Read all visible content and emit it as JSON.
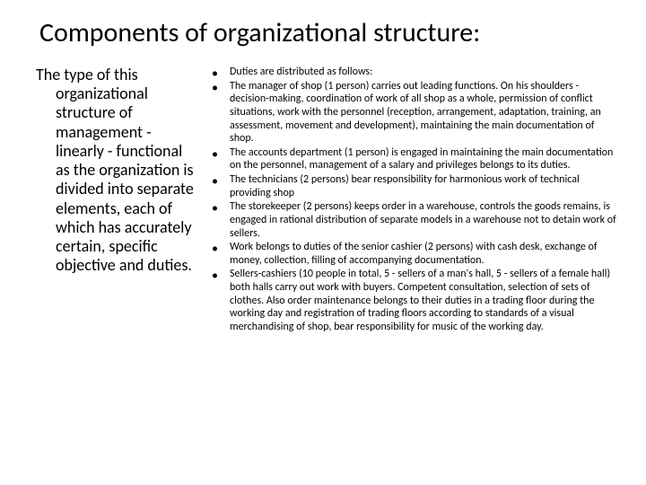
{
  "title": "Components of organizational structure:",
  "left": {
    "text": "The type of this organizational structure of management - linearly - functional as the organization is divided into separate elements, each of which has accurately certain, specific objective and duties."
  },
  "right": {
    "items": [
      "Duties are distributed as follows:",
      "The manager of shop (1 person) carries out leading functions. On his shoulders - decision-making, coordination of work of all shop as a whole, permission of conflict situations, work with the personnel (reception, arrangement, adaptation, training, an assessment, movement and development), maintaining the main documentation of shop.",
      "The accounts department (1 person) is engaged in maintaining the main documentation on the personnel, management of a salary and privileges belongs to its duties.",
      "The technicians (2 persons) bear responsibility for harmonious work of technical providing shop",
      "The storekeeper (2 persons) keeps order in a warehouse, controls the goods remains, is engaged in rational distribution of separate models in a warehouse not to detain work of sellers.",
      "Work belongs to duties of the senior cashier (2 persons) with cash desk, exchange of money, collection, filling of accompanying documentation.",
      "Sellers-cashiers (10 people in total, 5 - sellers of a man's hall, 5 - sellers of a female hall) both halls carry out work with buyers. Competent consultation, selection of sets of clothes. Also order maintenance belongs to their duties in a trading floor during the working day and registration of trading floors according to standards of a visual merchandising of shop, bear responsibility for music of the working day."
    ]
  }
}
